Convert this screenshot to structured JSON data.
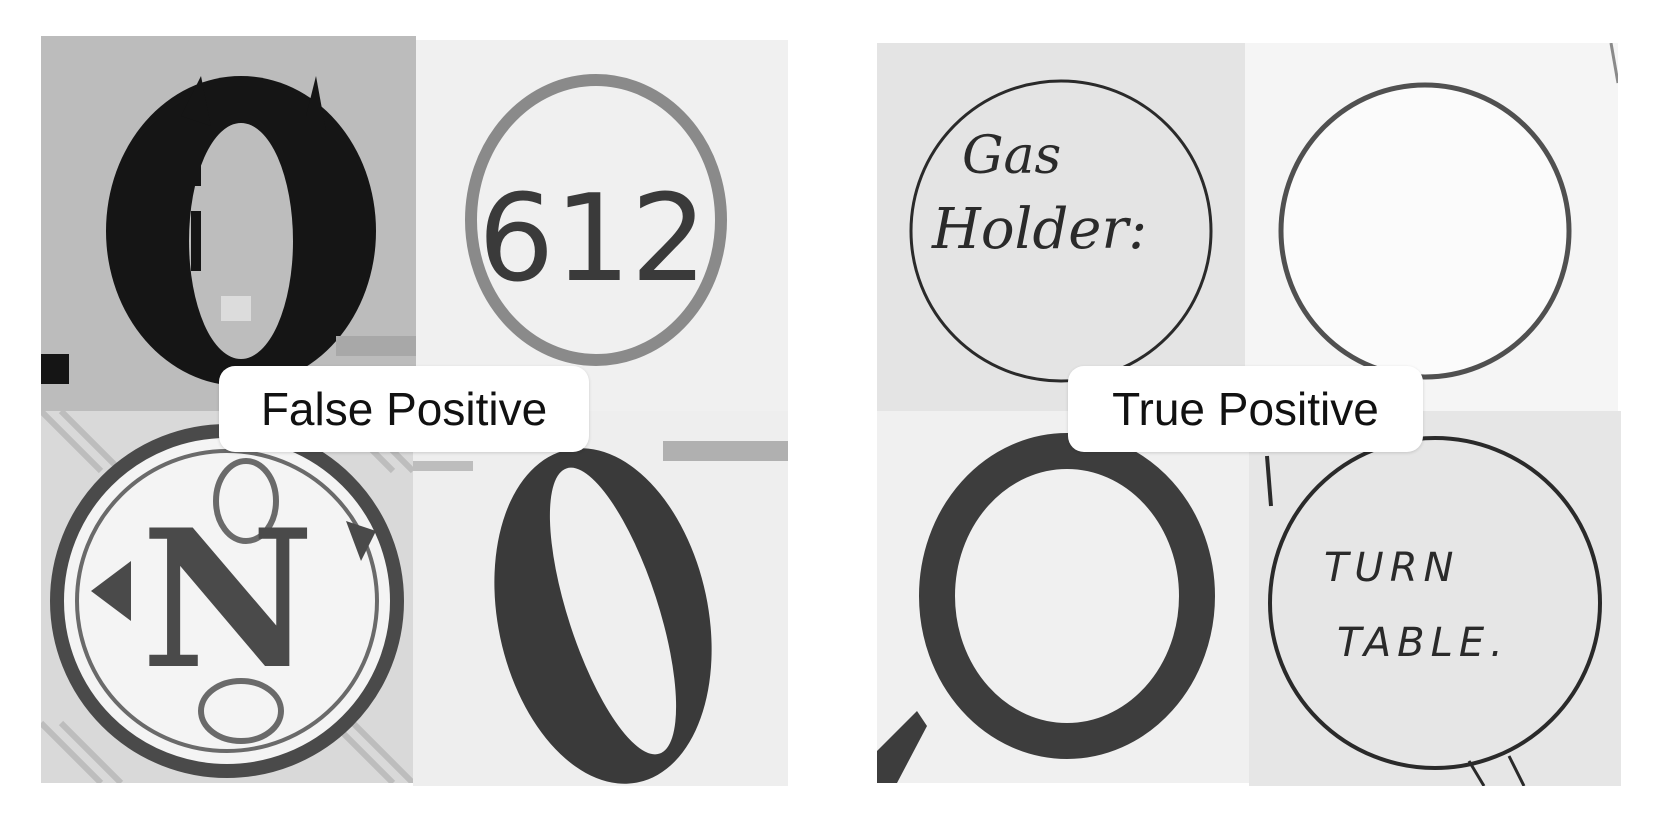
{
  "groups": {
    "false_positive": {
      "label": "False Positive",
      "tiles": [
        {
          "kind": "letter-o-blackletter"
        },
        {
          "kind": "circled-number",
          "text": "612"
        },
        {
          "kind": "monogram-seal",
          "text": "N"
        },
        {
          "kind": "letter-o-oblique"
        }
      ]
    },
    "true_positive": {
      "label": "True Positive",
      "tiles": [
        {
          "kind": "circle-with-text",
          "line1": "Gas",
          "line2": "Holder:"
        },
        {
          "kind": "empty-circle"
        },
        {
          "kind": "thick-circle"
        },
        {
          "kind": "circle-with-text",
          "line1": "TURN",
          "line2": "TABLE."
        }
      ]
    }
  },
  "colors": {
    "ink": "#1a1a1a",
    "paper_light": "#efefef",
    "paper_grey": "#bdbdbd",
    "label_bg": "#ffffff",
    "label_text": "#111111"
  }
}
